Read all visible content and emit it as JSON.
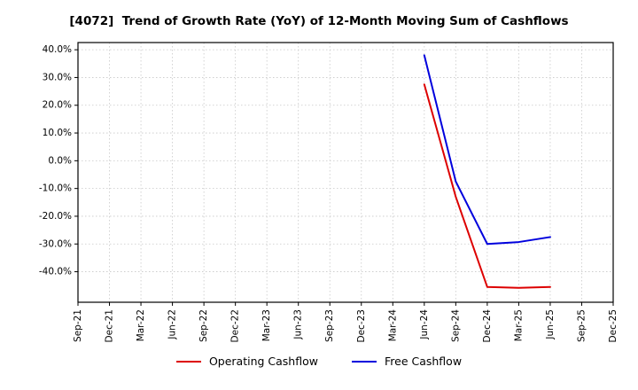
{
  "chart_data": {
    "type": "line",
    "title": "[4072]  Trend of Growth Rate (YoY) of 12-Month Moving Sum of Cashflows",
    "xlabel": "",
    "ylabel": "",
    "categories": [
      "Sep-21",
      "Dec-21",
      "Mar-22",
      "Jun-22",
      "Sep-22",
      "Dec-22",
      "Mar-23",
      "Jun-23",
      "Sep-23",
      "Dec-23",
      "Mar-24",
      "Jun-24",
      "Sep-24",
      "Dec-24",
      "Mar-25",
      "Jun-25",
      "Sep-25",
      "Dec-25"
    ],
    "series": [
      {
        "name": "Operating Cashflow",
        "color": "#dd0000",
        "values": [
          null,
          null,
          null,
          null,
          null,
          null,
          null,
          null,
          null,
          null,
          null,
          27.5,
          -13.0,
          -45.5,
          -45.8,
          -45.5,
          null,
          null
        ]
      },
      {
        "name": "Free Cashflow",
        "color": "#0000dd",
        "values": [
          null,
          null,
          null,
          null,
          null,
          null,
          null,
          null,
          null,
          null,
          null,
          38.0,
          -7.5,
          -30.0,
          -29.3,
          -27.5,
          null,
          null
        ]
      }
    ],
    "y_ticks": [
      40,
      30,
      20,
      10,
      0,
      -10,
      -20,
      -30,
      -40
    ],
    "y_tick_suffix": "%",
    "ylim": [
      -51,
      42.6
    ],
    "grid": true,
    "grid_color": "#c8c8c8",
    "axis_color": "#000000",
    "legend_position": "bottom"
  }
}
